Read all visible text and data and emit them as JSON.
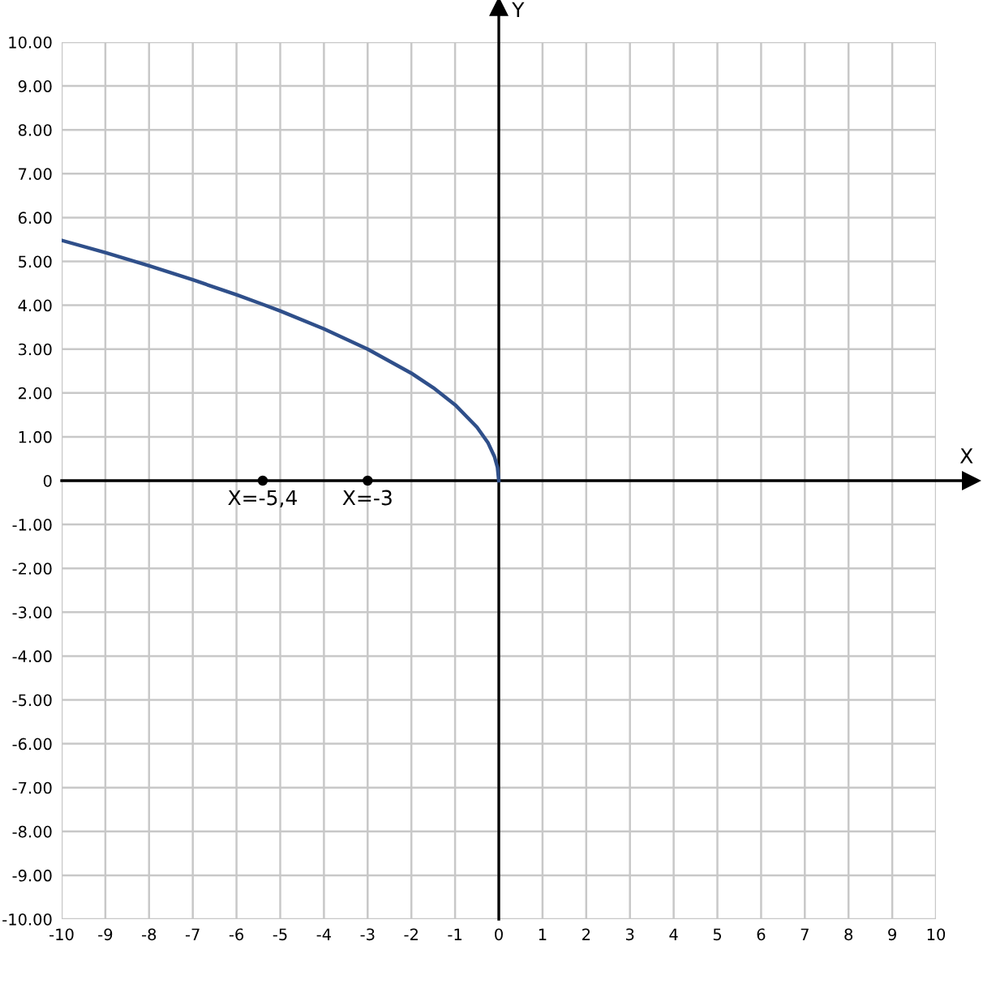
{
  "chart_data": {
    "type": "line",
    "xlabel": "X",
    "ylabel": "Y",
    "x": [
      -10,
      -9,
      -8,
      -7,
      -6,
      -5.4,
      -5,
      -4,
      -3,
      -2,
      -1.5,
      -1,
      -0.5,
      -0.25,
      -0.1,
      -0.03,
      0
    ],
    "series": [
      {
        "color": "#2f4f8a",
        "values": [
          5.48,
          5.2,
          4.9,
          4.58,
          4.24,
          4.02,
          3.87,
          3.46,
          3.0,
          2.45,
          2.12,
          1.73,
          1.22,
          0.87,
          0.55,
          0.3,
          0
        ]
      },
      {
        "type": "scatter",
        "color": "#000000",
        "marker": "circle",
        "x": [
          -5.4,
          -3
        ],
        "values": [
          0,
          0
        ]
      }
    ],
    "xlim": [
      -10,
      10
    ],
    "ylim": [
      -10,
      10
    ],
    "xticks": [
      {
        "value": -10,
        "label": "-10"
      },
      {
        "value": -9,
        "label": "-9"
      },
      {
        "value": -8,
        "label": "-8"
      },
      {
        "value": -7,
        "label": "-7"
      },
      {
        "value": -6,
        "label": "-6"
      },
      {
        "value": -5,
        "label": "-5"
      },
      {
        "value": -4,
        "label": "-4"
      },
      {
        "value": -3,
        "label": "-3"
      },
      {
        "value": -2,
        "label": "-2"
      },
      {
        "value": -1,
        "label": "-1"
      },
      0,
      1,
      2,
      3,
      4,
      5,
      6,
      7,
      8,
      9,
      10
    ],
    "yticks": [
      {
        "value": 10,
        "label": "10.00"
      },
      {
        "value": 9,
        "label": "9.00"
      },
      {
        "value": 8,
        "label": "8.00"
      },
      {
        "value": 7,
        "label": "7.00"
      },
      {
        "value": 6,
        "label": "6.00"
      },
      {
        "value": 5,
        "label": "5.00"
      },
      {
        "value": 4,
        "label": "4.00"
      },
      {
        "value": 3,
        "label": "3.00"
      },
      {
        "value": 2,
        "label": "2.00"
      },
      {
        "value": 1,
        "label": "1.00"
      },
      0,
      {
        "value": -1,
        "label": "-1.00"
      },
      {
        "value": -2,
        "label": "-2.00"
      },
      {
        "value": -3,
        "label": "-3.00"
      },
      {
        "value": -4,
        "label": "-4.00"
      },
      {
        "value": -5,
        "label": "-5.00"
      },
      {
        "value": -6,
        "label": "-6.00"
      },
      {
        "value": -7,
        "label": "-7.00"
      },
      {
        "value": -8,
        "label": "-8.00"
      },
      {
        "value": -9,
        "label": "-9.00"
      },
      {
        "value": -10,
        "label": "-10.00"
      }
    ],
    "annotations": [
      {
        "text": "X=-5,4",
        "x": -5.4,
        "y": 0
      },
      {
        "text": "X=-3",
        "x": -3,
        "y": 0
      }
    ],
    "grid": true,
    "line_style": "solid",
    "legend": false
  }
}
